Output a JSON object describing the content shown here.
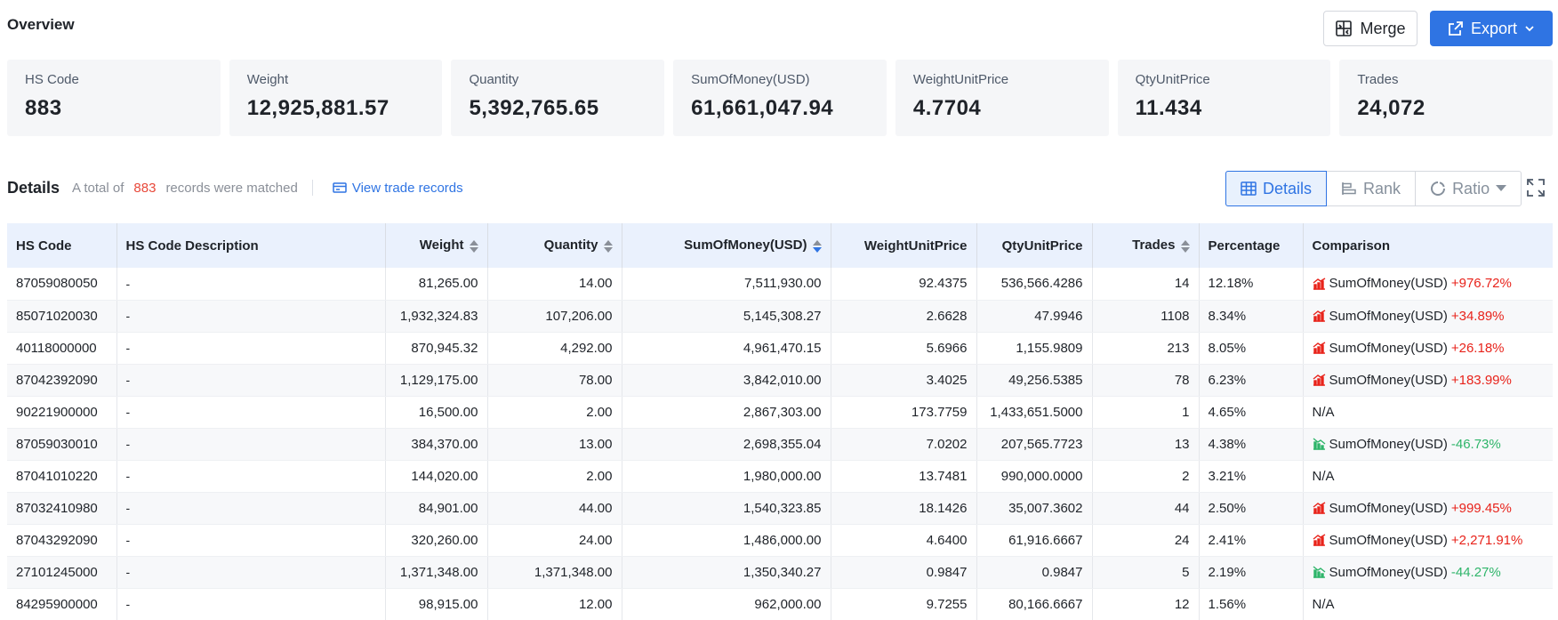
{
  "overview": {
    "title": "Overview",
    "merge_label": "Merge",
    "export_label": "Export",
    "cards": [
      {
        "label": "HS Code",
        "value": "883"
      },
      {
        "label": "Weight",
        "value": "12,925,881.57"
      },
      {
        "label": "Quantity",
        "value": "5,392,765.65"
      },
      {
        "label": "SumOfMoney(USD)",
        "value": "61,661,047.94"
      },
      {
        "label": "WeightUnitPrice",
        "value": "4.7704"
      },
      {
        "label": "QtyUnitPrice",
        "value": "11.434"
      },
      {
        "label": "Trades",
        "value": "24,072"
      }
    ]
  },
  "details": {
    "title": "Details",
    "total_prefix": "A total of",
    "count": "883",
    "total_suffix": "records were matched",
    "view_link": "View trade records",
    "views": {
      "details": "Details",
      "rank": "Rank",
      "ratio": "Ratio"
    }
  },
  "table": {
    "headers": [
      "HS Code",
      "HS Code Description",
      "Weight",
      "Quantity",
      "SumOfMoney(USD)",
      "WeightUnitPrice",
      "QtyUnitPrice",
      "Trades",
      "Percentage",
      "Comparison"
    ],
    "rows": [
      {
        "hs": "87059080050",
        "desc": "-",
        "weight": "81,265.00",
        "qty": "14.00",
        "sum": "7,511,930.00",
        "wup": "92.4375",
        "qup": "536,566.4286",
        "trades": "14",
        "pct": "12.18%",
        "cmp_label": "SumOfMoney(USD)",
        "cmp_val": "+976.72%",
        "dir": "up"
      },
      {
        "hs": "85071020030",
        "desc": "-",
        "weight": "1,932,324.83",
        "qty": "107,206.00",
        "sum": "5,145,308.27",
        "wup": "2.6628",
        "qup": "47.9946",
        "trades": "1108",
        "pct": "8.34%",
        "cmp_label": "SumOfMoney(USD)",
        "cmp_val": "+34.89%",
        "dir": "up"
      },
      {
        "hs": "40118000000",
        "desc": "-",
        "weight": "870,945.32",
        "qty": "4,292.00",
        "sum": "4,961,470.15",
        "wup": "5.6966",
        "qup": "1,155.9809",
        "trades": "213",
        "pct": "8.05%",
        "cmp_label": "SumOfMoney(USD)",
        "cmp_val": "+26.18%",
        "dir": "up"
      },
      {
        "hs": "87042392090",
        "desc": "-",
        "weight": "1,129,175.00",
        "qty": "78.00",
        "sum": "3,842,010.00",
        "wup": "3.4025",
        "qup": "49,256.5385",
        "trades": "78",
        "pct": "6.23%",
        "cmp_label": "SumOfMoney(USD)",
        "cmp_val": "+183.99%",
        "dir": "up"
      },
      {
        "hs": "90221900000",
        "desc": "-",
        "weight": "16,500.00",
        "qty": "2.00",
        "sum": "2,867,303.00",
        "wup": "173.7759",
        "qup": "1,433,651.5000",
        "trades": "1",
        "pct": "4.65%",
        "cmp_label": "N/A",
        "cmp_val": "",
        "dir": "na"
      },
      {
        "hs": "87059030010",
        "desc": "-",
        "weight": "384,370.00",
        "qty": "13.00",
        "sum": "2,698,355.04",
        "wup": "7.0202",
        "qup": "207,565.7723",
        "trades": "13",
        "pct": "4.38%",
        "cmp_label": "SumOfMoney(USD)",
        "cmp_val": "-46.73%",
        "dir": "down"
      },
      {
        "hs": "87041010220",
        "desc": "-",
        "weight": "144,020.00",
        "qty": "2.00",
        "sum": "1,980,000.00",
        "wup": "13.7481",
        "qup": "990,000.0000",
        "trades": "2",
        "pct": "3.21%",
        "cmp_label": "N/A",
        "cmp_val": "",
        "dir": "na"
      },
      {
        "hs": "87032410980",
        "desc": "-",
        "weight": "84,901.00",
        "qty": "44.00",
        "sum": "1,540,323.85",
        "wup": "18.1426",
        "qup": "35,007.3602",
        "trades": "44",
        "pct": "2.50%",
        "cmp_label": "SumOfMoney(USD)",
        "cmp_val": "+999.45%",
        "dir": "up"
      },
      {
        "hs": "87043292090",
        "desc": "-",
        "weight": "320,260.00",
        "qty": "24.00",
        "sum": "1,486,000.00",
        "wup": "4.6400",
        "qup": "61,916.6667",
        "trades": "24",
        "pct": "2.41%",
        "cmp_label": "SumOfMoney(USD)",
        "cmp_val": "+2,271.91%",
        "dir": "up"
      },
      {
        "hs": "27101245000",
        "desc": "-",
        "weight": "1,371,348.00",
        "qty": "1,371,348.00",
        "sum": "1,350,340.27",
        "wup": "0.9847",
        "qup": "0.9847",
        "trades": "5",
        "pct": "2.19%",
        "cmp_label": "SumOfMoney(USD)",
        "cmp_val": "-44.27%",
        "dir": "down"
      },
      {
        "hs": "84295900000",
        "desc": "-",
        "weight": "98,915.00",
        "qty": "12.00",
        "sum": "962,000.00",
        "wup": "9.7255",
        "qup": "80,166.6667",
        "trades": "12",
        "pct": "1.56%",
        "cmp_label": "N/A",
        "cmp_val": "",
        "dir": "na"
      }
    ]
  },
  "colors": {
    "accent": "#2f74e3",
    "up": "#e8231b",
    "down": "#2fb56a",
    "count": "#e8483a"
  }
}
